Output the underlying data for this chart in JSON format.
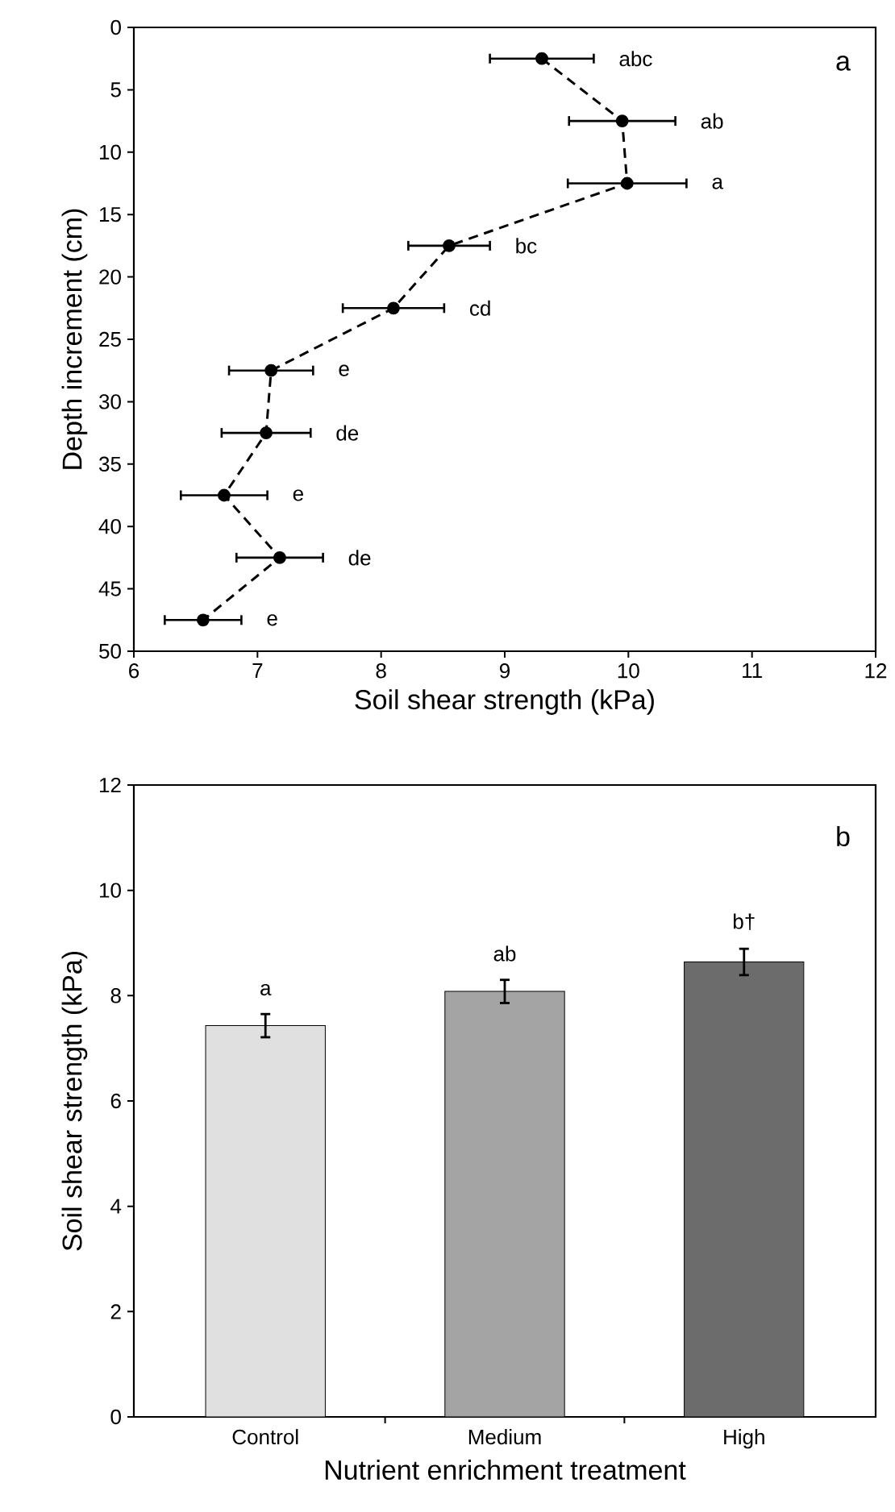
{
  "chart_data": [
    {
      "type": "line",
      "xlabel": "Soil shear strength (kPa)",
      "ylabel": "Depth increment (cm)",
      "series": [
        {
          "color": "#000000",
          "x": [
            9.3,
            9.95,
            9.99,
            8.55,
            8.1,
            7.11,
            7.07,
            6.73,
            7.18,
            6.56
          ],
          "values": [
            2.5,
            7.5,
            12.5,
            17.5,
            22.5,
            27.5,
            32.5,
            37.5,
            42.5,
            47.5
          ],
          "xerrors": [
            0.42,
            0.43,
            0.48,
            0.33,
            0.41,
            0.34,
            0.36,
            0.35,
            0.35,
            0.31
          ]
        }
      ],
      "marker": "circle",
      "line_style": "dashed",
      "grid": false,
      "xlim": [
        6,
        12
      ],
      "xticks": [
        6,
        7,
        8,
        9,
        10,
        11,
        12
      ],
      "ylim": [
        50,
        0
      ],
      "yticks": [
        0,
        5,
        10,
        15,
        20,
        25,
        30,
        35,
        40,
        45,
        50
      ],
      "annotations": [
        "a",
        "abc",
        "ab",
        "a",
        "bc",
        "cd",
        "e",
        "de",
        "e",
        "de",
        "e"
      ]
    },
    {
      "type": "bar",
      "xlabel": "Nutrient enrichment treatment",
      "ylabel": "Soil shear strength (kPa)",
      "categories": [
        "Control",
        "Medium",
        "High"
      ],
      "values": [
        7.43,
        8.08,
        8.64
      ],
      "errors": [
        0.22,
        0.22,
        0.25
      ],
      "colors": [
        "#e0e0e0",
        "#a4a4a4",
        "#6c6c6c"
      ],
      "grid": false,
      "ylim": [
        0,
        12
      ],
      "yticks": [
        0,
        2,
        4,
        6,
        8,
        10,
        12
      ],
      "annotations": [
        "b",
        "a",
        "ab",
        "b†"
      ]
    }
  ]
}
